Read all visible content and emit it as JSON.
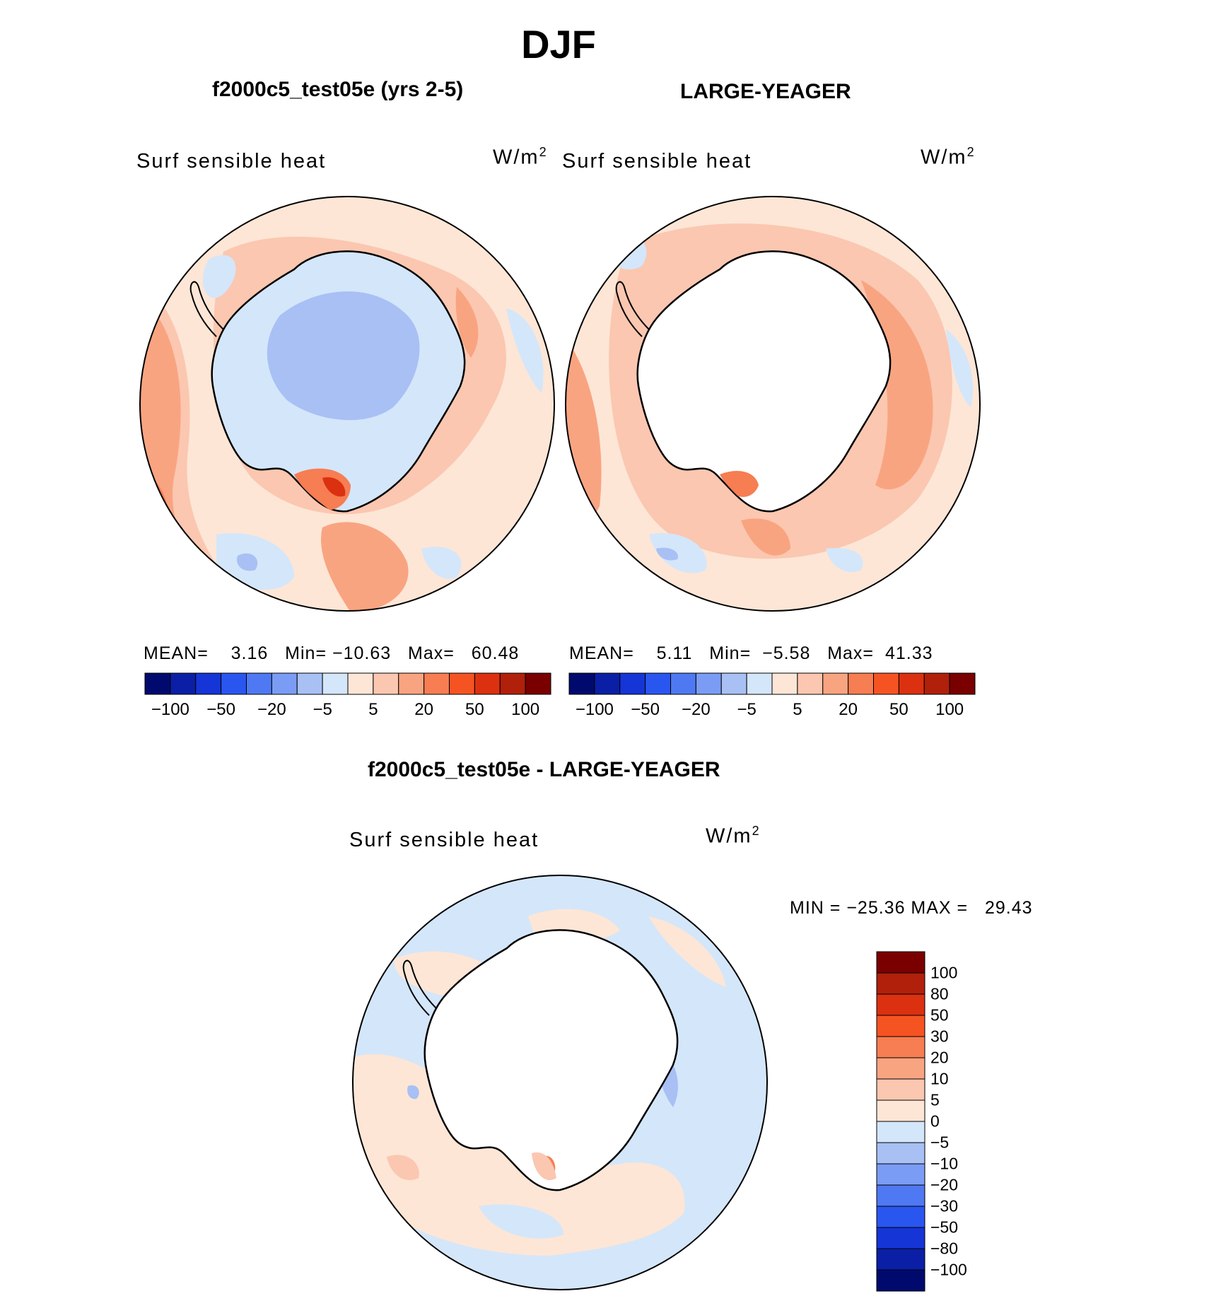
{
  "title": "DJF",
  "panels": [
    {
      "title": "f2000c5_test05e (yrs 2-5)",
      "label": "Surf sensible heat",
      "units": "W/m",
      "units_sup": "2",
      "stats": {
        "mean_label": "MEAN=",
        "mean": "3.16",
        "min_label": "Min=",
        "min": "−10.63",
        "max_label": "Max=",
        "max": "60.48"
      },
      "antarctica": "light-blue"
    },
    {
      "title": "LARGE-YEAGER",
      "label": "Surf sensible heat",
      "units": "W/m",
      "units_sup": "2",
      "stats": {
        "mean_label": "MEAN=",
        "mean": "5.11",
        "min_label": "Min=",
        "min": "−5.58",
        "max_label": "Max=",
        "max": "41.33"
      },
      "antarctica": "white"
    }
  ],
  "diff_panel": {
    "title": "f2000c5_test05e - LARGE-YEAGER",
    "label": "Surf sensible heat",
    "units": "W/m",
    "units_sup": "2",
    "minmax": "MIN = −25.36 MAX =   29.43"
  },
  "colorbar_top": {
    "colors": [
      "#000a6e",
      "#0a1fa6",
      "#1535d6",
      "#2a56f0",
      "#4f79f2",
      "#7b9cf4",
      "#a8c0f4",
      "#d4e6fa",
      "#fde6d6",
      "#fbc7b0",
      "#f9a481",
      "#f77d52",
      "#f55422",
      "#db3110",
      "#b0200a",
      "#7a0000"
    ],
    "tick_labels": [
      "−100",
      "−50",
      "−20",
      "−5",
      "5",
      "20",
      "50",
      "100"
    ]
  },
  "colorbar_diff": {
    "colors_top_to_bottom": [
      "#7a0000",
      "#b0200a",
      "#db3110",
      "#f55422",
      "#f77d52",
      "#f9a481",
      "#fbc7b0",
      "#fde6d6",
      "#d4e6fa",
      "#a8c0f4",
      "#7b9cf4",
      "#4f79f2",
      "#2a56f0",
      "#1535d6",
      "#0a1fa6",
      "#000a6e"
    ],
    "tick_labels": [
      "100",
      "80",
      "50",
      "30",
      "20",
      "10",
      "5",
      "0",
      "−5",
      "−10",
      "−20",
      "−30",
      "−50",
      "−80",
      "−100"
    ]
  },
  "colors": {
    "coast": "#000000",
    "neg_light": "#d4e6fa",
    "neg_mid": "#a8c0f4",
    "pos_light": "#fde6d6",
    "pos_mid": "#fbc7b0",
    "pos_strong": "#f9a481",
    "pos_deep": "#f77d52",
    "pos_red": "#db3110"
  }
}
